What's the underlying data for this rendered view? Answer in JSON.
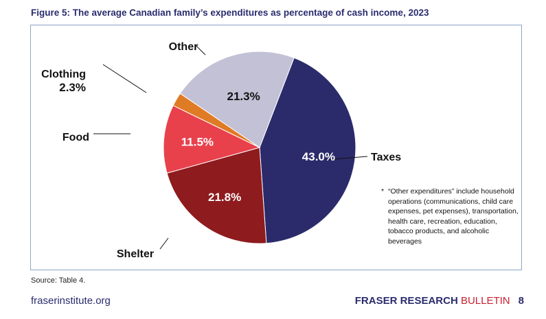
{
  "figure_title": "Figure 5: The average Canadian family’s expenditures as percentage of cash income, 2023",
  "chart_data": {
    "type": "pie",
    "title": "Figure 5: The average Canadian family’s expenditures as percentage of cash income, 2023",
    "slices": [
      {
        "name": "Taxes",
        "value": 43.0,
        "value_label": "43.0%",
        "color": "#2b2b6b",
        "value_text_color": "#ffffff"
      },
      {
        "name": "Shelter",
        "value": 21.8,
        "value_label": "21.8%",
        "color": "#8e1b1e",
        "value_text_color": "#ffffff"
      },
      {
        "name": "Food",
        "value": 11.5,
        "value_label": "11.5%",
        "color": "#e8414c",
        "value_text_color": "#ffffff"
      },
      {
        "name": "Clothing",
        "value": 2.3,
        "value_label": "2.3%",
        "color": "#e07b25",
        "value_text_color": "#111111"
      },
      {
        "name": "Other",
        "value": 21.3,
        "value_label": "21.3%",
        "color": "#c2c1d6",
        "value_text_color": "#111111"
      }
    ]
  },
  "footnote": {
    "marker": "*",
    "text": "“Other expenditures” include household operations (communications, child care expenses, pet expenses), transportation, health care, recreation, education, tobacco products, and alcoholic beverages"
  },
  "source": "Source: Table 4.",
  "footer": {
    "site": "fraserinstitute.org",
    "bulletin_bold": "FRASER RESEARCH",
    "bulletin_light": "BULLETIN",
    "page_number": "8"
  }
}
